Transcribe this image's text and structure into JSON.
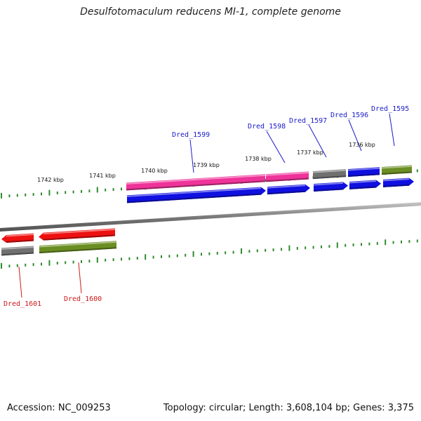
{
  "title": "Desulfotomaculum reducens MI-1, complete genome",
  "footer": {
    "accession": "Accession: NC_009253",
    "summary": "Topology: circular; Length: 3,608,104 bp; Genes: 3,375"
  },
  "colors": {
    "background": "#ffffff",
    "scale_ticks": "#2e8b2e",
    "backbone": "#808080",
    "label_forward": "#1a1acc",
    "label_reverse": "#cc1a1a",
    "cds_blue": "#1010e0",
    "cds_pink": "#ee3399",
    "cds_gray": "#707070",
    "cds_olive": "#6b8e23",
    "cds_red": "#ee1111"
  },
  "scale_labels": [
    {
      "text": "1742 kbp",
      "kbp": 1742
    },
    {
      "text": "1741 kbp",
      "kbp": 1741
    },
    {
      "text": "1740 kbp",
      "kbp": 1740
    },
    {
      "text": "1739 kbp",
      "kbp": 1739
    },
    {
      "text": "1738 kbp",
      "kbp": 1738
    },
    {
      "text": "1737 kbp",
      "kbp": 1737
    },
    {
      "text": "1736 kbp",
      "kbp": 1736
    }
  ],
  "genes": [
    {
      "id": "Dred_1595",
      "strand": "+",
      "color": "cds_olive"
    },
    {
      "id": "Dred_1596",
      "strand": "+",
      "color": "cds_blue"
    },
    {
      "id": "Dred_1597",
      "strand": "+",
      "color": "cds_gray"
    },
    {
      "id": "Dred_1598",
      "strand": "+",
      "color": "cds_pink"
    },
    {
      "id": "Dred_1599",
      "strand": "+",
      "color": "cds_pink"
    },
    {
      "id": "Dred_1600",
      "strand": "-",
      "color": "cds_red"
    },
    {
      "id": "Dred_1601",
      "strand": "-",
      "color": "cds_red"
    }
  ]
}
